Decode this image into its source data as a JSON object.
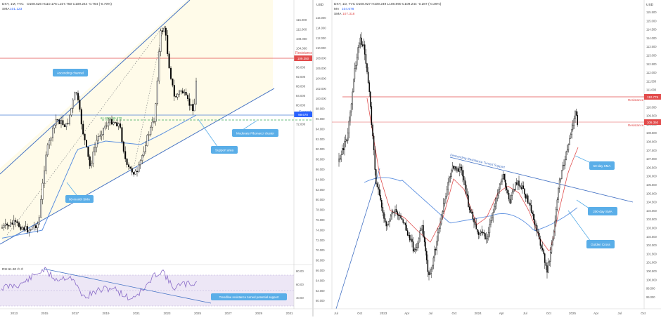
{
  "left_panel": {
    "header": {
      "symbol": "DXY, 1M, TVC",
      "quote": "O108.526  H110.176  L107.750  C109.244  -0.764 (-0.70%)",
      "sma_label": "SMA",
      "sma_value": "101.123"
    },
    "price_axis": {
      "ticks": [
        "116.000",
        "112.000",
        "108.000",
        "104.000",
        "100.000",
        "96.000",
        "92.000",
        "88.000",
        "84.000",
        "80.000",
        "76.000",
        "72.000"
      ],
      "last_price": "109.350",
      "support_price": "99.670"
    },
    "rsi_axis": {
      "ticks": [
        "80.00",
        "60.00",
        "40.00"
      ]
    },
    "rsi_header": "RSI  61.30  ∅  ∅",
    "x_axis": [
      "2013",
      "2015",
      "2017",
      "2019",
      "2021",
      "2023",
      "2025",
      "2027",
      "2029",
      "2031"
    ],
    "labels": {
      "resistance": "Resistance",
      "support": "Support",
      "fib": "61.80%  99.670",
      "ascending_channel": "Ascending channel",
      "sma_60": "60-month SMA",
      "fib_cluster": "Moderate Fibonacci cluster",
      "support_area": "Support area",
      "trendline": "Trendline resistance turned potential support"
    }
  },
  "right_panel": {
    "header": {
      "symbol": "DXY, 1D, TVC",
      "quote": "O108.927  H109.249  L108.890  C109.244  -0.287  (-0.26%)",
      "ma_label": "MA",
      "ma_value": "104.678",
      "sma_label": "SMA",
      "sma_value": "107.318"
    },
    "left_axis_title": "USD",
    "left_axis": [
      "116.000",
      "114.000",
      "112.000",
      "110.000",
      "108.000",
      "106.000",
      "104.000",
      "102.000",
      "100.000",
      "98.000",
      "96.000",
      "94.000",
      "92.000",
      "90.000",
      "88.000",
      "86.000",
      "84.000",
      "82.000",
      "80.000",
      "78.000",
      "76.000",
      "74.000",
      "72.000",
      "70.000",
      "68.000",
      "66.000",
      "64.000",
      "62.000",
      "60.000"
    ],
    "right_axis_title": "USD",
    "right_axis": [
      "115.500",
      "115.000",
      "114.500",
      "114.000",
      "113.500",
      "113.000",
      "112.500",
      "112.000",
      "111.500",
      "111.000",
      "110.500",
      "110.000",
      "109.500",
      "109.000",
      "108.500",
      "108.000",
      "107.500",
      "107.000",
      "106.500",
      "106.000",
      "105.500",
      "105.000",
      "104.500",
      "104.000",
      "103.500",
      "103.000",
      "102.500",
      "102.000",
      "101.500",
      "101.000",
      "100.500",
      "100.000",
      "99.500",
      "99.000"
    ],
    "resistance_price": "110.779",
    "last_price": "109.350",
    "x_axis": [
      "Jul",
      "Oct",
      "2023",
      "Apr",
      "Jul",
      "Oct",
      "2024",
      "Apr",
      "Jul",
      "Oct",
      "2025",
      "Apr",
      "Jul",
      "Oct"
    ],
    "labels": {
      "resistance_upper": "Resistance",
      "resistance_lower": "Resistance",
      "trendline": "Descending Resistance Turned Support",
      "sma_50": "50-day SMA",
      "sma_200": "200-day SMA",
      "golden_cross": "Golden Cross"
    }
  },
  "colors": {
    "candle": "#000000",
    "channel": "#4472c4",
    "channel_fill": "#fffbea",
    "resistance": "#e24b4b",
    "support": "#4a7fd4",
    "sma_blue": "#5b8fe0",
    "sma_red": "#e05050",
    "callout": "#5aaee8",
    "rsi_line": "#8a6cc8",
    "rsi_fill": "#ede7f6"
  }
}
